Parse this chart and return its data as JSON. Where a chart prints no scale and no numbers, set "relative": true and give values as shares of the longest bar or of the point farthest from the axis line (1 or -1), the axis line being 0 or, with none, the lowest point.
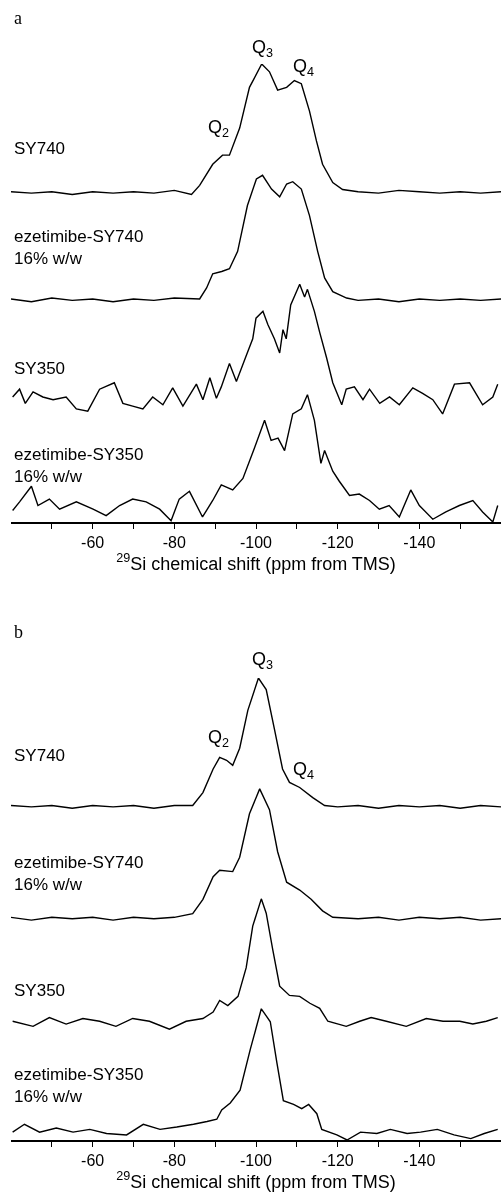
{
  "chart_data": [
    {
      "type": "line",
      "relative": true,
      "title": "a",
      "xlim": [
        -40,
        -160
      ],
      "tick_labels": "x",
      "xlabel": "$^{29}$Si chemical shift (ppm from TMS)",
      "xticks": [
        {
          "value": -50,
          "label": null
        },
        -60,
        {
          "value": -70,
          "label": null
        },
        -80,
        {
          "value": -90,
          "label": null
        },
        -100,
        {
          "value": -110,
          "label": null
        },
        -120,
        {
          "value": -130,
          "label": null
        },
        -140,
        {
          "value": -150,
          "label": null
        }
      ],
      "annotations": [
        "Q$_{2}$",
        "Q$_{3}$",
        "Q$_{4}$"
      ],
      "series": [
        {
          "name": "SY740",
          "color": "#000000",
          "x": [
            -40,
            -45,
            -50,
            -55,
            -60,
            -65,
            -70,
            -75,
            -80,
            -84.2,
            -86.2,
            -89.4,
            -91.8,
            -93.5,
            -96,
            -98.4,
            -101.4,
            -103.3,
            -105.3,
            -107.5,
            -109.4,
            -111.1,
            -113.1,
            -114.8,
            -116.3,
            -118.8,
            -121.2,
            -125,
            -130,
            -135,
            -140,
            -145,
            -150,
            -155,
            -160
          ],
          "values": [
            0.721,
            0.718,
            0.721,
            0.715,
            0.721,
            0.718,
            0.721,
            0.718,
            0.724,
            0.715,
            0.735,
            0.781,
            0.801,
            0.801,
            0.86,
            0.949,
            1.0,
            0.983,
            0.943,
            0.949,
            0.964,
            0.957,
            0.897,
            0.832,
            0.781,
            0.741,
            0.726,
            0.721,
            0.718,
            0.724,
            0.721,
            0.718,
            0.721,
            0.718,
            0.721
          ]
        },
        {
          "name": "ezetimibe-SY740\n16% w/w",
          "color": "#000000",
          "x": [
            -40,
            -45,
            -50,
            -55,
            -60,
            -65,
            -70,
            -75,
            -80,
            -86.2,
            -87.9,
            -89.4,
            -91.6,
            -93.5,
            -95.5,
            -97.9,
            -100.1,
            -101.6,
            -103.8,
            -105.8,
            -107.5,
            -109,
            -111.1,
            -113.1,
            -115.1,
            -116.8,
            -118.8,
            -122.2,
            -125,
            -130,
            -135,
            -140,
            -145,
            -150,
            -155,
            -160
          ],
          "values": [
            0.487,
            0.481,
            0.489,
            0.484,
            0.487,
            0.481,
            0.487,
            0.484,
            0.489,
            0.487,
            0.511,
            0.542,
            0.547,
            0.553,
            0.591,
            0.691,
            0.749,
            0.757,
            0.727,
            0.71,
            0.738,
            0.743,
            0.727,
            0.669,
            0.591,
            0.533,
            0.503,
            0.489,
            0.484,
            0.487,
            0.481,
            0.487,
            0.484,
            0.487,
            0.484,
            0.487
          ]
        },
        {
          "name": "SY350",
          "color": "#000000",
          "x": [
            -40.4,
            -42.1,
            -43.5,
            -45.4,
            -47.8,
            -50.3,
            -53.5,
            -56,
            -58.8,
            -61.7,
            -65.3,
            -67.4,
            -69.8,
            -72.3,
            -74.7,
            -77.2,
            -79.6,
            -82.1,
            -85.4,
            -87,
            -88.7,
            -90.3,
            -91.5,
            -93.5,
            -95.2,
            -97.6,
            -99.2,
            -100,
            -101.7,
            -102.9,
            -104.5,
            -105.8,
            -106.6,
            -107.4,
            -108.5,
            -110.7,
            -111.9,
            -112.6,
            -114.3,
            -115.6,
            -117.3,
            -118.8,
            -121,
            -122.1,
            -124.1,
            -126.2,
            -127.8,
            -130.3,
            -132.7,
            -135.1,
            -138.4,
            -140.8,
            -143.3,
            -145.7,
            -148.6,
            -152.3,
            -155.5,
            -158,
            -159.2
          ],
          "values": [
            0.273,
            0.29,
            0.259,
            0.284,
            0.273,
            0.267,
            0.273,
            0.247,
            0.242,
            0.29,
            0.304,
            0.259,
            0.253,
            0.247,
            0.273,
            0.256,
            0.293,
            0.253,
            0.301,
            0.267,
            0.315,
            0.27,
            0.295,
            0.346,
            0.307,
            0.363,
            0.4,
            0.445,
            0.46,
            0.431,
            0.4,
            0.369,
            0.42,
            0.4,
            0.474,
            0.519,
            0.491,
            0.508,
            0.46,
            0.414,
            0.358,
            0.304,
            0.256,
            0.29,
            0.295,
            0.267,
            0.29,
            0.259,
            0.273,
            0.256,
            0.293,
            0.281,
            0.267,
            0.236,
            0.301,
            0.304,
            0.256,
            0.273,
            0.301
          ]
        },
        {
          "name": "ezetimibe-SY350\n16% w/w",
          "color": "#000000",
          "x": [
            -40.4,
            -42.1,
            -45,
            -46.6,
            -49.4,
            -51.9,
            -56,
            -60.1,
            -63.3,
            -66.6,
            -69.8,
            -73.1,
            -76.4,
            -79.2,
            -81.2,
            -83.7,
            -86.9,
            -89.4,
            -91.5,
            -94.3,
            -96.8,
            -99.6,
            -102.1,
            -103.7,
            -105.4,
            -107,
            -109,
            -111.1,
            -112.6,
            -114.3,
            -115.9,
            -116.8,
            -118.8,
            -120.4,
            -122.9,
            -125.3,
            -127.8,
            -130.2,
            -132.6,
            -135.1,
            -137.9,
            -140,
            -143.3,
            -146.5,
            -149.8,
            -153.1,
            -155.5,
            -158,
            -159.2
          ],
          "values": [
            0.025,
            0.044,
            0.078,
            0.036,
            0.05,
            0.028,
            0.044,
            0.028,
            0.014,
            0.036,
            0.05,
            0.044,
            0.028,
            0.003,
            0.05,
            0.067,
            0.011,
            0.047,
            0.081,
            0.07,
            0.095,
            0.161,
            0.222,
            0.178,
            0.183,
            0.156,
            0.236,
            0.247,
            0.278,
            0.222,
            0.128,
            0.156,
            0.111,
            0.089,
            0.058,
            0.061,
            0.047,
            0.028,
            0.036,
            0.011,
            0.07,
            0.036,
            0.006,
            0.022,
            0.036,
            0.047,
            0.022,
            0.0,
            0.036
          ]
        }
      ]
    },
    {
      "type": "line",
      "relative": true,
      "title": "b",
      "xlim": [
        -40,
        -160
      ],
      "tick_labels": "x",
      "xlabel": "$^{29}$Si chemical shift (ppm from TMS)",
      "xticks": [
        {
          "value": -50,
          "label": null
        },
        -60,
        {
          "value": -70,
          "label": null
        },
        -80,
        {
          "value": -90,
          "label": null
        },
        -100,
        {
          "value": -110,
          "label": null
        },
        -120,
        {
          "value": -130,
          "label": null
        },
        -140,
        {
          "value": -150,
          "label": null
        }
      ],
      "annotations": [
        "Q$_{2}$",
        "Q$_{3}$",
        "Q$_{4}$"
      ],
      "series": [
        {
          "name": "SY740",
          "color": "#000000",
          "x": [
            -40,
            -45,
            -50,
            -55,
            -60,
            -65,
            -70,
            -75,
            -80,
            -84.5,
            -87,
            -89.5,
            -91.1,
            -92.8,
            -94.3,
            -96,
            -98,
            -100.6,
            -102.5,
            -104.5,
            -106.5,
            -108.2,
            -110.7,
            -113.9,
            -116.8,
            -120,
            -125,
            -130,
            -135,
            -140,
            -145,
            -150,
            -155,
            -160
          ],
          "values": [
            0.724,
            0.721,
            0.724,
            0.718,
            0.724,
            0.721,
            0.724,
            0.718,
            0.724,
            0.724,
            0.752,
            0.803,
            0.828,
            0.822,
            0.811,
            0.848,
            0.93,
            1.0,
            0.975,
            0.89,
            0.803,
            0.774,
            0.763,
            0.741,
            0.724,
            0.721,
            0.724,
            0.718,
            0.724,
            0.721,
            0.724,
            0.718,
            0.724,
            0.721
          ]
        },
        {
          "name": "ezetimibe-SY740\n16% w/w",
          "color": "#000000",
          "x": [
            -40,
            -45,
            -50,
            -55,
            -60,
            -65,
            -70,
            -75,
            -80,
            -84.5,
            -87,
            -89.5,
            -91.1,
            -94.3,
            -96,
            -98.4,
            -100.9,
            -103.3,
            -105.3,
            -107.5,
            -110.7,
            -113.5,
            -116.3,
            -118.8,
            -125,
            -130,
            -135,
            -140,
            -145,
            -150,
            -155,
            -160
          ],
          "values": [
            0.482,
            0.476,
            0.482,
            0.479,
            0.482,
            0.476,
            0.482,
            0.479,
            0.482,
            0.49,
            0.521,
            0.57,
            0.584,
            0.581,
            0.612,
            0.706,
            0.76,
            0.715,
            0.624,
            0.558,
            0.541,
            0.521,
            0.496,
            0.482,
            0.479,
            0.482,
            0.476,
            0.482,
            0.479,
            0.482,
            0.476,
            0.479
          ]
        },
        {
          "name": "SY350",
          "color": "#000000",
          "x": [
            -40.4,
            -45.4,
            -49.4,
            -53.5,
            -57.6,
            -61.7,
            -65.7,
            -69.8,
            -73.9,
            -78.8,
            -82.9,
            -87,
            -89.5,
            -91.1,
            -93.1,
            -95.6,
            -97.6,
            -99.2,
            -101.3,
            -102.5,
            -104.1,
            -105.8,
            -108.2,
            -110.7,
            -113.2,
            -115.6,
            -117.6,
            -122.1,
            -125.4,
            -128.2,
            -131.9,
            -136.8,
            -141.7,
            -145.8,
            -149.9,
            -153.1,
            -156.4,
            -159.2
          ],
          "values": [
            0.257,
            0.246,
            0.265,
            0.251,
            0.263,
            0.257,
            0.246,
            0.263,
            0.257,
            0.24,
            0.257,
            0.263,
            0.277,
            0.302,
            0.291,
            0.311,
            0.373,
            0.463,
            0.522,
            0.491,
            0.412,
            0.333,
            0.313,
            0.311,
            0.296,
            0.285,
            0.257,
            0.246,
            0.257,
            0.265,
            0.257,
            0.246,
            0.263,
            0.257,
            0.257,
            0.251,
            0.257,
            0.265
          ]
        },
        {
          "name": "ezetimibe-SY350\n16% w/w",
          "color": "#000000",
          "x": [
            -40.4,
            -43.3,
            -47,
            -51.1,
            -55.2,
            -59.3,
            -63.4,
            -68.3,
            -72.4,
            -76.5,
            -80.6,
            -84.7,
            -88,
            -90.4,
            -91.6,
            -93.7,
            -96.1,
            -98.6,
            -101.3,
            -103.5,
            -105.1,
            -106.7,
            -109.2,
            -111.2,
            -112.9,
            -114.9,
            -116.1,
            -119.8,
            -122.3,
            -125.6,
            -129.6,
            -132.9,
            -137,
            -140.3,
            -144.4,
            -148.5,
            -152.6,
            -155.9,
            -159.2
          ],
          "values": [
            0.017,
            0.034,
            0.017,
            0.026,
            0.017,
            0.023,
            0.014,
            0.011,
            0.034,
            0.023,
            0.028,
            0.034,
            0.04,
            0.045,
            0.065,
            0.08,
            0.108,
            0.196,
            0.284,
            0.256,
            0.168,
            0.085,
            0.077,
            0.068,
            0.077,
            0.057,
            0.023,
            0.011,
            0.0,
            0.017,
            0.014,
            0.023,
            0.014,
            0.017,
            0.023,
            0.011,
            0.003,
            0.014,
            0.023
          ]
        }
      ]
    }
  ]
}
